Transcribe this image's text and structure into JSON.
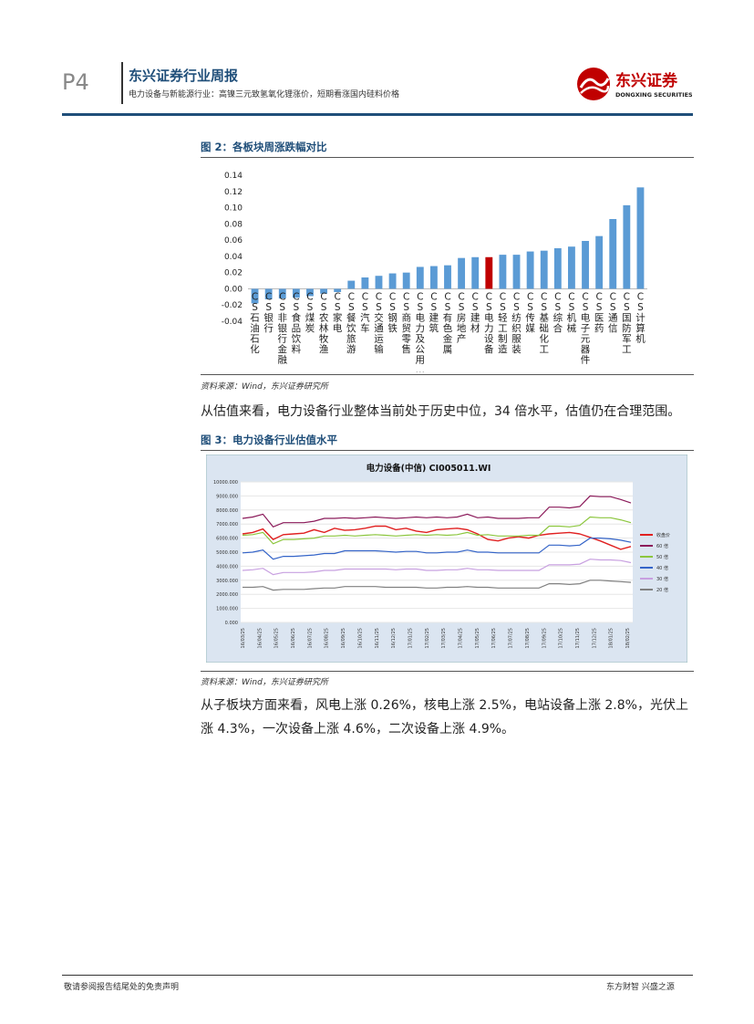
{
  "header": {
    "page_number": "P4",
    "report_title": "东兴证券行业周报",
    "subtitle": "电力设备与新能源行业：高镍三元致氢氧化锂涨价，短期看涨国内硅料价格",
    "logo_cn": "东兴证券",
    "logo_en": "DONGXING SECURITIES",
    "brand_color": "#c00000"
  },
  "figure2": {
    "title": "图 2：各板块周涨跌幅对比",
    "source": "资料来源：Wind，东兴证券研究所",
    "chart_data": {
      "type": "bar",
      "categories": [
        "CS石油石化",
        "CS银行",
        "CS非银行金融",
        "CS食品饮料",
        "CS煤炭",
        "CS农林牧渔",
        "CS家电",
        "CS餐饮旅游",
        "CS汽车",
        "CS交通运输",
        "CS钢铁",
        "CS商贸零售",
        "CS电力及公用…",
        "CS建筑",
        "CS有色金属",
        "CS房地产",
        "CS建材",
        "CS电力设备",
        "CS轻工制造",
        "CS纺织服装",
        "CS传媒",
        "CS基础化工",
        "CS综合",
        "CS机械",
        "CS电子元器件",
        "CS医药",
        "CS通信",
        "CS国防军工",
        "CS计算机"
      ],
      "values": [
        -0.018,
        -0.013,
        -0.012,
        -0.011,
        -0.009,
        -0.006,
        -0.004,
        0.01,
        0.014,
        0.016,
        0.019,
        0.02,
        0.027,
        0.028,
        0.029,
        0.038,
        0.039,
        0.039,
        0.042,
        0.042,
        0.046,
        0.047,
        0.05,
        0.052,
        0.059,
        0.065,
        0.086,
        0.103,
        0.125
      ],
      "highlight_index": 17,
      "bar_color": "#5b9bd5",
      "highlight_color": "#c00000",
      "ylim": [
        -0.04,
        0.14
      ],
      "yticks": [
        "0.14",
        "0.12",
        "0.10",
        "0.08",
        "0.06",
        "0.04",
        "0.02",
        "0.00",
        "-0.02",
        "-0.04"
      ],
      "ytick_values": [
        0.14,
        0.12,
        0.1,
        0.08,
        0.06,
        0.04,
        0.02,
        0.0,
        -0.02,
        -0.04
      ]
    }
  },
  "paragraph1": "从估值来看，电力设备行业整体当前处于历史中位，34 倍水平，估值仍在合理范围。",
  "figure3": {
    "title": "图 3：电力设备行业估值水平",
    "source": "资料来源：Wind，东兴证券研究所",
    "chart_data": {
      "type": "line",
      "title": "电力设备(中信) CI005011.WI",
      "ylim": [
        0,
        10000
      ],
      "yticks": [
        "10000.000",
        "9000.000",
        "8000.000",
        "7000.000",
        "6000.000",
        "5000.000",
        "4000.000",
        "3000.000",
        "2000.000",
        "1000.000",
        "0.000"
      ],
      "ytick_values": [
        10000,
        9000,
        8000,
        7000,
        6000,
        5000,
        4000,
        3000,
        2000,
        1000,
        0
      ],
      "x_labels": [
        "16/03/25",
        "16/04/25",
        "16/05/25",
        "16/06/25",
        "16/07/25",
        "16/08/25",
        "16/09/25",
        "16/10/25",
        "16/11/25",
        "16/12/25",
        "17/01/25",
        "17/02/25",
        "17/03/25",
        "17/04/25",
        "17/05/25",
        "17/06/25",
        "17/07/25",
        "17/08/25",
        "17/09/25",
        "17/10/25",
        "17/11/25",
        "17/12/25",
        "18/01/25",
        "18/02/25"
      ],
      "series": [
        {
          "name": "收盘价",
          "color": "#e02020",
          "values": [
            6300,
            6400,
            6650,
            5900,
            6250,
            6300,
            6350,
            6600,
            6400,
            6700,
            6550,
            6600,
            6700,
            6850,
            6850,
            6600,
            6700,
            6500,
            6400,
            6600,
            6650,
            6700,
            6600,
            6300,
            5900,
            5800,
            6000,
            6100,
            6000,
            6200,
            6300,
            6350,
            6400,
            6300,
            6050,
            5800,
            5500,
            5200,
            5400
          ]
        },
        {
          "name": "60 倍",
          "color": "#8b1a5a",
          "values": [
            7400,
            7500,
            7700,
            6800,
            7100,
            7100,
            7100,
            7200,
            7400,
            7400,
            7450,
            7400,
            7450,
            7500,
            7450,
            7400,
            7450,
            7500,
            7450,
            7500,
            7450,
            7500,
            7700,
            7450,
            7500,
            7400,
            7400,
            7400,
            7450,
            7450,
            8200,
            8200,
            8150,
            8250,
            9000,
            8950,
            8950,
            8750,
            8500
          ]
        },
        {
          "name": "50 倍",
          "color": "#8cc63e",
          "values": [
            6200,
            6250,
            6400,
            5600,
            5900,
            5900,
            5950,
            6000,
            6150,
            6150,
            6200,
            6150,
            6200,
            6250,
            6200,
            6150,
            6200,
            6250,
            6200,
            6250,
            6200,
            6250,
            6400,
            6200,
            6250,
            6150,
            6150,
            6150,
            6200,
            6200,
            6850,
            6850,
            6800,
            6900,
            7500,
            7450,
            7450,
            7300,
            7100
          ]
        },
        {
          "name": "40 倍",
          "color": "#3464c8",
          "values": [
            4950,
            5000,
            5150,
            4500,
            4700,
            4700,
            4750,
            4800,
            4900,
            4900,
            5100,
            5100,
            5100,
            5100,
            5050,
            5000,
            5050,
            5050,
            4950,
            4950,
            5000,
            5000,
            5150,
            5000,
            5000,
            4950,
            4950,
            4950,
            4950,
            4950,
            5500,
            5500,
            5450,
            5500,
            6000,
            6000,
            5950,
            5850,
            5700
          ]
        },
        {
          "name": "30 倍",
          "color": "#c8a0e0",
          "values": [
            3700,
            3750,
            3850,
            3400,
            3550,
            3550,
            3550,
            3600,
            3700,
            3700,
            3800,
            3800,
            3800,
            3800,
            3800,
            3750,
            3800,
            3800,
            3700,
            3700,
            3750,
            3750,
            3850,
            3750,
            3750,
            3700,
            3700,
            3700,
            3700,
            3700,
            4100,
            4100,
            4100,
            4150,
            4500,
            4450,
            4450,
            4400,
            4250
          ]
        },
        {
          "name": "20 倍",
          "color": "#808080",
          "values": [
            2500,
            2500,
            2550,
            2300,
            2350,
            2350,
            2350,
            2400,
            2450,
            2450,
            2550,
            2550,
            2550,
            2550,
            2500,
            2500,
            2500,
            2500,
            2450,
            2450,
            2500,
            2500,
            2550,
            2500,
            2500,
            2450,
            2450,
            2450,
            2450,
            2450,
            2750,
            2750,
            2700,
            2750,
            3000,
            3000,
            2950,
            2900,
            2850
          ]
        }
      ]
    }
  },
  "paragraph2": "从子板块方面来看，风电上涨 0.26%，核电上涨 2.5%，电站设备上涨 2.8%，光伏上涨 4.3%，一次设备上涨 4.6%，二次设备上涨 4.9%。",
  "footer": {
    "left": "敬请参阅报告结尾处的免责声明",
    "right": "东方财智 兴盛之源"
  }
}
